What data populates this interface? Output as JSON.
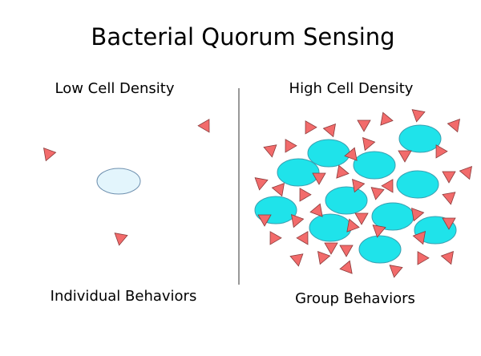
{
  "title": "Bacterial Quorum Sensing",
  "left": {
    "heading": "Low Cell Density",
    "caption": "Individual Behaviors"
  },
  "right": {
    "heading": "High Cell Density",
    "caption": "Group Behaviors"
  }
}
